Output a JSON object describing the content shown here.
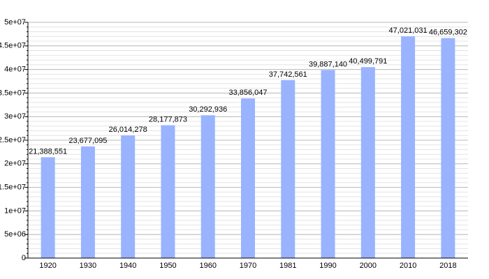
{
  "chart_data": {
    "type": "bar",
    "categories": [
      "1920",
      "1930",
      "1940",
      "1950",
      "1960",
      "1970",
      "1981",
      "1990",
      "2000",
      "2010",
      "2018"
    ],
    "values": [
      21388551,
      23677095,
      26014278,
      28177873,
      30292936,
      33856047,
      37742561,
      39887140,
      40499791,
      47021031,
      46659302
    ],
    "value_labels": [
      "21,388,551",
      "23,677,095",
      "26,014,278",
      "28,177,873",
      "30,292,936",
      "33,856,047",
      "37,742,561",
      "39,887,140",
      "40,499,791",
      "47,021,031",
      "46,659,302"
    ],
    "color": "#99b3ff",
    "ylim": [
      0,
      50000000
    ],
    "yticks": [
      0,
      {
        "value": 5000000,
        "label": "5e+06"
      },
      {
        "value": 10000000,
        "label": "1e+07"
      },
      {
        "value": 15000000,
        "label": "1.5e+07"
      },
      {
        "value": 20000000,
        "label": "2e+07"
      },
      {
        "value": 25000000,
        "label": "2.5e+07"
      },
      {
        "value": 30000000,
        "label": "3e+07"
      },
      {
        "value": 35000000,
        "label": "3.5e+07"
      },
      {
        "value": 40000000,
        "label": "4e+07"
      },
      {
        "value": 45000000,
        "label": "4.5e+07"
      },
      {
        "value": 50000000,
        "label": "5e+07"
      }
    ],
    "minor_grid_step": 1000000,
    "grid": true
  }
}
